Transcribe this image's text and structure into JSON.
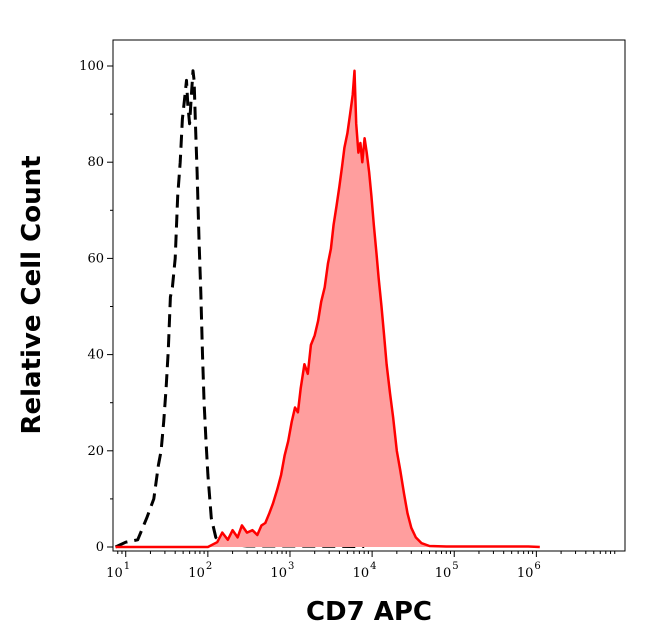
{
  "chart_data": {
    "type": "area",
    "title": "",
    "xlabel": "CD7 APC",
    "ylabel": "Relative Cell Count",
    "xscale": "log",
    "xlim": [
      7,
      12000000
    ],
    "ylim": [
      0,
      100
    ],
    "grid": false,
    "legend": "none",
    "x_ticks": [
      {
        "base": "10",
        "exp": "1",
        "value": 10
      },
      {
        "base": "10",
        "exp": "2",
        "value": 100
      },
      {
        "base": "10",
        "exp": "3",
        "value": 1000
      },
      {
        "base": "10",
        "exp": "4",
        "value": 10000
      },
      {
        "base": "10",
        "exp": "5",
        "value": 100000
      },
      {
        "base": "10",
        "exp": "6",
        "value": 1000000
      }
    ],
    "y_ticks": [
      "0",
      "20",
      "40",
      "60",
      "80",
      "100"
    ],
    "series": [
      {
        "style": "dashed",
        "color": "#000000",
        "fill": "none",
        "points": [
          [
            7.5,
            0
          ],
          [
            10,
            1
          ],
          [
            14,
            1.5
          ],
          [
            18,
            6
          ],
          [
            22,
            10
          ],
          [
            25,
            17
          ],
          [
            27,
            20
          ],
          [
            29,
            26
          ],
          [
            31,
            33
          ],
          [
            33,
            41
          ],
          [
            35,
            52
          ],
          [
            37,
            54
          ],
          [
            40,
            60
          ],
          [
            43,
            73
          ],
          [
            46,
            80
          ],
          [
            49,
            89
          ],
          [
            52,
            93
          ],
          [
            55,
            97
          ],
          [
            57,
            92
          ],
          [
            60,
            88
          ],
          [
            63,
            94
          ],
          [
            66,
            99
          ],
          [
            68,
            97
          ],
          [
            71,
            87
          ],
          [
            74,
            78
          ],
          [
            78,
            64
          ],
          [
            82,
            53
          ],
          [
            86,
            40
          ],
          [
            90,
            30
          ],
          [
            95,
            22
          ],
          [
            100,
            15
          ],
          [
            110,
            6
          ],
          [
            125,
            2
          ],
          [
            150,
            1
          ],
          [
            200,
            0.5
          ],
          [
            300,
            0.2
          ],
          [
            1000,
            0.2
          ],
          [
            8000,
            0.1
          ]
        ]
      },
      {
        "style": "solid",
        "color": "#ff0000",
        "fill": "#ff9e9e",
        "points": [
          [
            7.5,
            0
          ],
          [
            100,
            0
          ],
          [
            130,
            1
          ],
          [
            150,
            3
          ],
          [
            175,
            1.5
          ],
          [
            200,
            3.5
          ],
          [
            230,
            2
          ],
          [
            260,
            4.5
          ],
          [
            300,
            3
          ],
          [
            350,
            3.5
          ],
          [
            400,
            2.5
          ],
          [
            450,
            4.5
          ],
          [
            500,
            5
          ],
          [
            560,
            7
          ],
          [
            620,
            9
          ],
          [
            700,
            12
          ],
          [
            780,
            15
          ],
          [
            860,
            19
          ],
          [
            950,
            22
          ],
          [
            1050,
            26
          ],
          [
            1150,
            29
          ],
          [
            1250,
            28
          ],
          [
            1350,
            33
          ],
          [
            1500,
            38
          ],
          [
            1650,
            36
          ],
          [
            1800,
            42
          ],
          [
            2000,
            44
          ],
          [
            2200,
            47
          ],
          [
            2400,
            51
          ],
          [
            2650,
            54
          ],
          [
            2900,
            59
          ],
          [
            3150,
            62
          ],
          [
            3400,
            67
          ],
          [
            3700,
            71
          ],
          [
            4000,
            75
          ],
          [
            4300,
            79
          ],
          [
            4600,
            83
          ],
          [
            5000,
            86
          ],
          [
            5400,
            90
          ],
          [
            5800,
            94
          ],
          [
            6100,
            99
          ],
          [
            6400,
            88
          ],
          [
            6800,
            82
          ],
          [
            7200,
            84
          ],
          [
            7600,
            80
          ],
          [
            8100,
            85
          ],
          [
            8600,
            82
          ],
          [
            9200,
            78
          ],
          [
            9800,
            73
          ],
          [
            10500,
            67
          ],
          [
            11300,
            61
          ],
          [
            12000,
            56
          ],
          [
            13000,
            50
          ],
          [
            14000,
            44
          ],
          [
            15000,
            38
          ],
          [
            16500,
            32
          ],
          [
            18000,
            27
          ],
          [
            20000,
            20
          ],
          [
            22000,
            16
          ],
          [
            24500,
            11
          ],
          [
            27000,
            7
          ],
          [
            30000,
            4
          ],
          [
            34000,
            2
          ],
          [
            40000,
            0.8
          ],
          [
            50000,
            0.2
          ],
          [
            80000,
            0.1
          ],
          [
            200000,
            0.1
          ],
          [
            800000,
            0.1
          ],
          [
            1100000,
            0
          ]
        ]
      }
    ]
  }
}
